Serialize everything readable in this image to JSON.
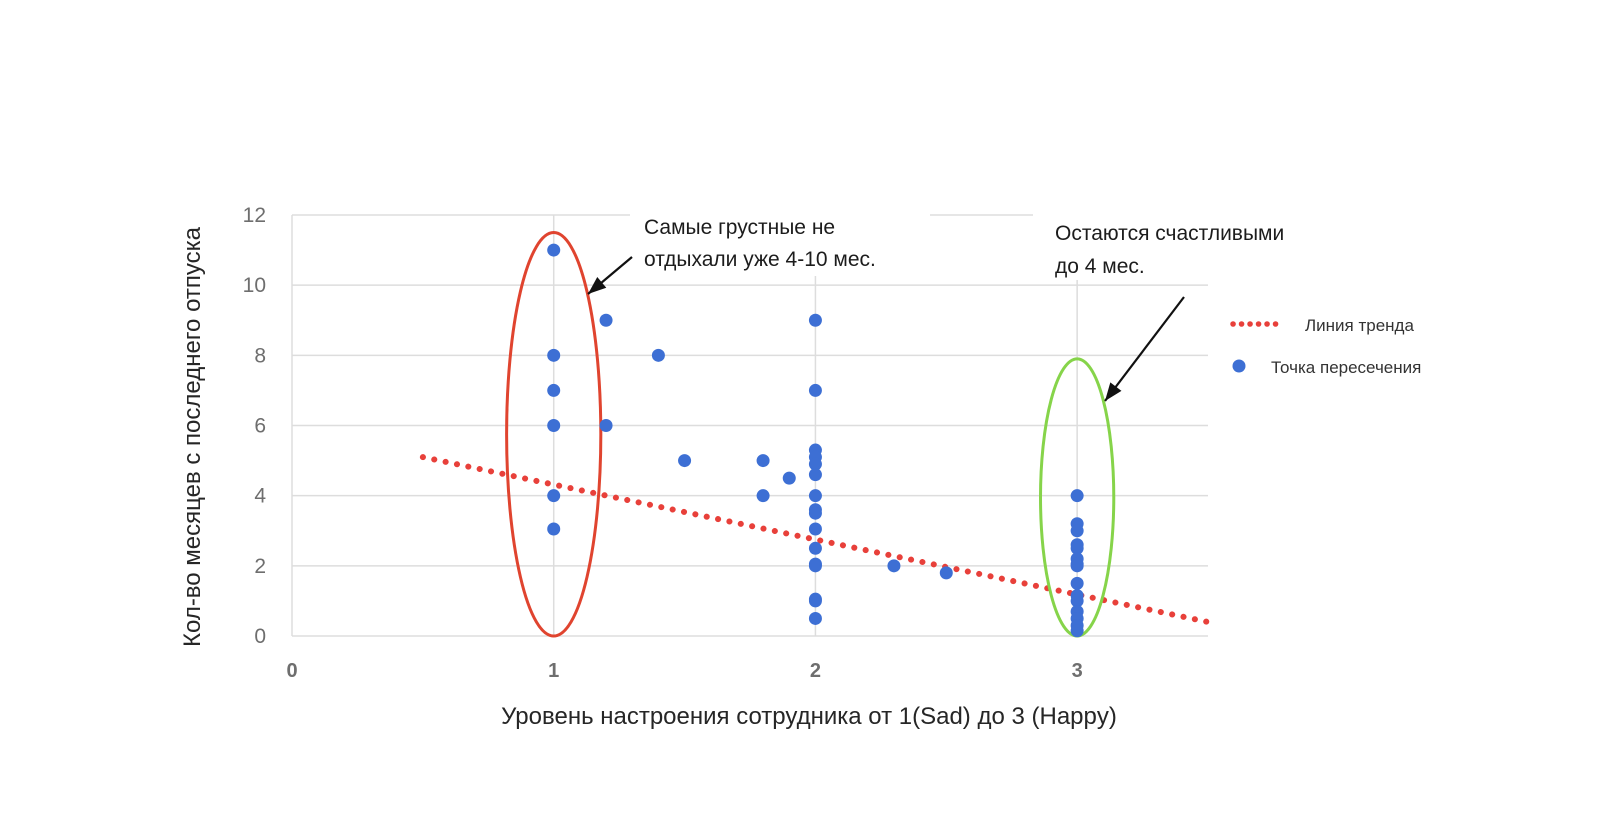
{
  "chart_data": {
    "type": "scatter",
    "title": "",
    "xlabel": "Уровень настроения сотрудника от 1(Sad) до 3 (Happy)",
    "ylabel": "Кол-во месяцев с последнего отпуска",
    "xlim": [
      0,
      3.5
    ],
    "ylim": [
      0,
      12
    ],
    "xticks": [
      0,
      1,
      2,
      3
    ],
    "yticks": [
      0,
      2,
      4,
      6,
      8,
      10,
      12
    ],
    "grid": true,
    "legend_position": "right",
    "colors": {
      "points": "#3d6fd4",
      "trend": "#e8403a",
      "sad_ellipse": "#e0442f",
      "happy_ellipse": "#86d44a",
      "arrow": "#111111",
      "grid": "#dddddd",
      "tick": "#6e6e6e"
    },
    "series": [
      {
        "name": "Точка пересечения",
        "type": "scatter",
        "points": [
          [
            1,
            11
          ],
          [
            1,
            8
          ],
          [
            1,
            7
          ],
          [
            1,
            6
          ],
          [
            1,
            4
          ],
          [
            1,
            3.05
          ],
          [
            1.2,
            9
          ],
          [
            1.2,
            6
          ],
          [
            1.4,
            8
          ],
          [
            1.5,
            5
          ],
          [
            1.8,
            5
          ],
          [
            1.8,
            4
          ],
          [
            1.9,
            4.5
          ],
          [
            2,
            9
          ],
          [
            2,
            7
          ],
          [
            2,
            5.3
          ],
          [
            2,
            5.1
          ],
          [
            2,
            4.9
          ],
          [
            2,
            4.6
          ],
          [
            2,
            4
          ],
          [
            2,
            3.6
          ],
          [
            2,
            3.5
          ],
          [
            2,
            3.05
          ],
          [
            2,
            2.5
          ],
          [
            2,
            2.05
          ],
          [
            2,
            2
          ],
          [
            2,
            1.05
          ],
          [
            2,
            1
          ],
          [
            2,
            0.5
          ],
          [
            2.3,
            2
          ],
          [
            2.5,
            1.8
          ],
          [
            3,
            4
          ],
          [
            3,
            3.2
          ],
          [
            3,
            3
          ],
          [
            3,
            2.6
          ],
          [
            3,
            2.5
          ],
          [
            3,
            2.2
          ],
          [
            3,
            2.05
          ],
          [
            3,
            2
          ],
          [
            3,
            1.5
          ],
          [
            3,
            1.15
          ],
          [
            3,
            1
          ],
          [
            3,
            0.7
          ],
          [
            3,
            0.5
          ],
          [
            3,
            0.3
          ],
          [
            3,
            0.15
          ]
        ]
      },
      {
        "name": "Линия тренда",
        "type": "line",
        "style": "dotted",
        "points": [
          [
            0.5,
            5.1
          ],
          [
            3.5,
            0.4
          ]
        ]
      }
    ],
    "annotations": [
      {
        "id": "sad",
        "lines": [
          "Самые грустные не",
          "отдыхали уже 4-10 мес."
        ]
      },
      {
        "id": "happy",
        "lines": [
          "Остаются счастливыми",
          "до 4 мес."
        ]
      }
    ],
    "highlights": [
      {
        "id": "sad",
        "cx": 1,
        "cy": 5.75,
        "rx": 0.18,
        "ry": 5.75
      },
      {
        "id": "happy",
        "cx": 3,
        "cy": 3.95,
        "rx": 0.14,
        "ry": 3.95
      }
    ]
  }
}
